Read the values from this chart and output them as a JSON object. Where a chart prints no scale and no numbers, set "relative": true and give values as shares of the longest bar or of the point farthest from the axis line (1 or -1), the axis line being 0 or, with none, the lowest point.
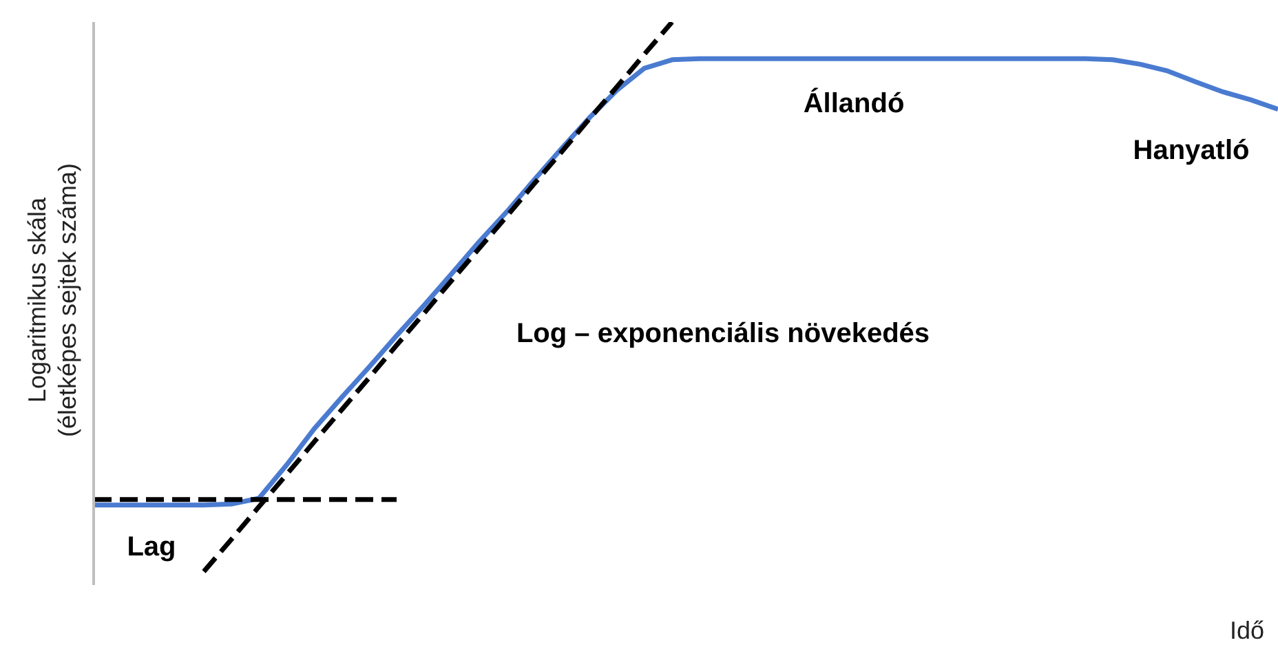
{
  "chart_data": {
    "type": "line",
    "relative": true,
    "xlabel": "Idő",
    "ylabel": "Logaritmikus skála\n(életképes sejtek száma)",
    "marker": "none",
    "categories": [
      null,
      null,
      null,
      null,
      null,
      null,
      null,
      null,
      null,
      null,
      null,
      null,
      null,
      null,
      null,
      null,
      null,
      null,
      null,
      null,
      null,
      null,
      null,
      null,
      null,
      null,
      null,
      null,
      null,
      null,
      null,
      null,
      null,
      null,
      null,
      null,
      null,
      null,
      null,
      null,
      null,
      null,
      null,
      null
    ],
    "series": [
      {
        "color": "#4a7bd0",
        "line_style": "solid",
        "values": [
          0.142,
          0.142,
          0.142,
          0.142,
          0.142,
          0.144,
          0.154,
          0.213,
          0.277,
          0.333,
          0.387,
          0.443,
          0.497,
          0.553,
          0.61,
          0.663,
          0.72,
          0.776,
          0.83,
          0.879,
          0.918,
          0.933,
          0.935,
          0.935,
          0.935,
          0.935,
          0.935,
          0.935,
          0.935,
          0.935,
          0.935,
          0.935,
          0.935,
          0.935,
          0.935,
          0.935,
          0.935,
          0.933,
          0.925,
          0.913,
          0.894,
          0.876,
          0.862,
          0.845
        ]
      },
      {
        "color": "#000000",
        "line_style": "dashed",
        "values": [
          0.152,
          0.152,
          0.152,
          0.152,
          0.152,
          0.152,
          0.152,
          0.152,
          0.152,
          0.152,
          0.152,
          0.152,
          null,
          null,
          null,
          null,
          null,
          null,
          null,
          null,
          null,
          null,
          null,
          null,
          null,
          null,
          null,
          null,
          null,
          null,
          null,
          null,
          null,
          null,
          null,
          null,
          null,
          null,
          null,
          null,
          null,
          null,
          null,
          null
        ]
      },
      {
        "color": "#000000",
        "line_style": "dashed",
        "values": [
          null,
          null,
          null,
          null,
          0.024,
          0.081,
          0.139,
          0.196,
          0.254,
          0.311,
          0.368,
          0.426,
          0.483,
          0.541,
          0.598,
          0.655,
          0.713,
          0.77,
          0.828,
          0.885,
          0.943,
          1.0,
          null,
          null,
          null,
          null,
          null,
          null,
          null,
          null,
          null,
          null,
          null,
          null,
          null,
          null,
          null,
          null,
          null,
          null,
          null,
          null,
          null,
          null
        ]
      }
    ],
    "annotations": [
      "Állandó",
      "Hanyatló",
      "Log – exponenciális növekedés",
      "Lag"
    ]
  }
}
